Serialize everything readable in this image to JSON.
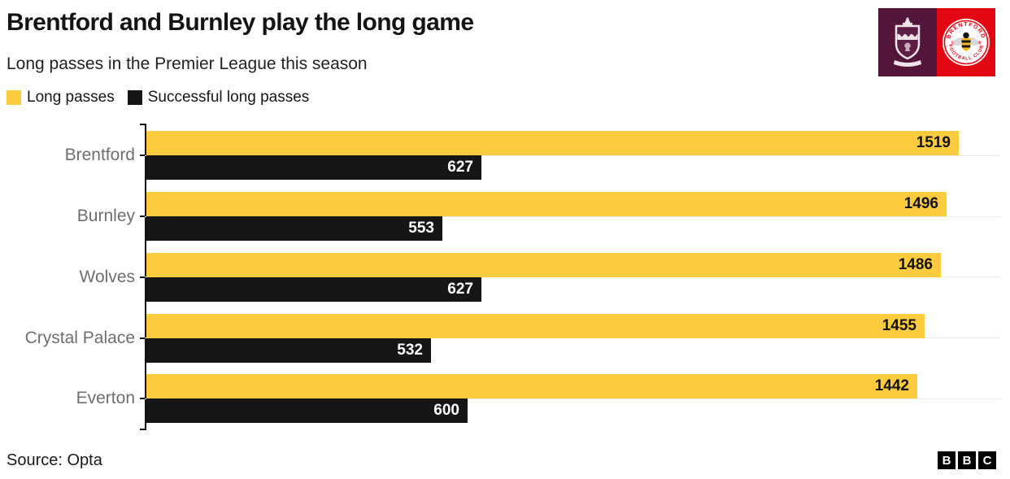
{
  "header": {
    "title": "Brentford and Burnley play the long game",
    "subtitle": "Long passes in the Premier League this season"
  },
  "legend": {
    "items": [
      {
        "label": "Long passes",
        "color": "#FCCB3E"
      },
      {
        "label": "Successful long passes",
        "color": "#161616"
      }
    ]
  },
  "badges": {
    "burnley": {
      "name": "burnley-crest",
      "bg": "#53163A"
    },
    "brentford": {
      "name": "brentford-crest",
      "bg": "#E30613",
      "arc_top": "BRENTFORD",
      "arc_bottom": "FOOTBALL CLUB",
      "year_left": "18",
      "year_right": "89"
    }
  },
  "colors": {
    "long_passes": "#FCCB3E",
    "successful": "#161616",
    "grid": "#e8e8e8",
    "axis": "#121212",
    "category_label": "#6e6e6e",
    "value_on_yellow": "#121212",
    "value_on_black": "#ffffff"
  },
  "chart_data": {
    "type": "bar",
    "orientation": "horizontal",
    "title": "Brentford and Burnley play the long game",
    "subtitle": "Long passes in the Premier League this season",
    "categories": [
      "Brentford",
      "Burnley",
      "Wolves",
      "Crystal Palace",
      "Everton"
    ],
    "series": [
      {
        "name": "Long passes",
        "values": [
          1519,
          1496,
          1486,
          1455,
          1442
        ]
      },
      {
        "name": "Successful long passes",
        "values": [
          627,
          553,
          627,
          532,
          600
        ]
      }
    ],
    "xlim": [
      0,
      1600
    ],
    "grid": true,
    "legend_position": "top",
    "value_labels": "inside-end"
  },
  "footer": {
    "source": "Source: Opta",
    "bbc_letters": [
      "B",
      "B",
      "C"
    ]
  }
}
